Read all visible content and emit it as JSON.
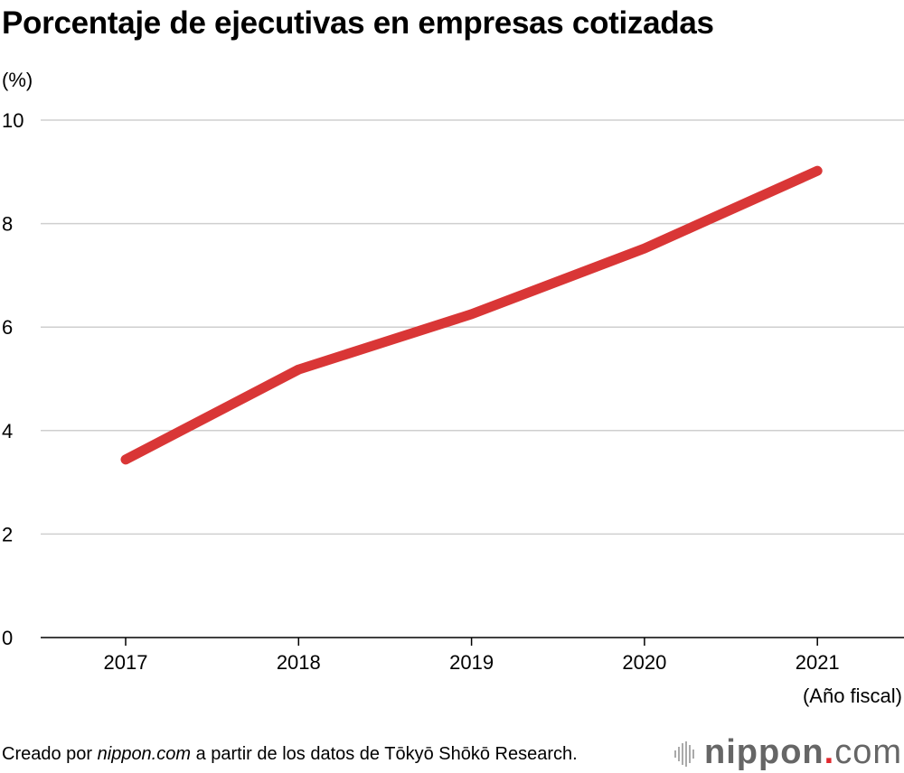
{
  "chart_data": {
    "type": "line",
    "title": "Porcentaje de ejecutivas en empresas cotizadas",
    "ylabel": "(%)",
    "xlabel": "(Año fiscal)",
    "categories": [
      "2017",
      "2018",
      "2019",
      "2020",
      "2021"
    ],
    "values": [
      3.44,
      5.18,
      6.25,
      7.52,
      9.02
    ],
    "ylim": [
      0,
      10
    ],
    "yticks": [
      0,
      2,
      4,
      6,
      8,
      10
    ],
    "grid": true,
    "line_color": "#d93636"
  },
  "footer": {
    "prefix": "Creado por ",
    "source_site": "nippon.com",
    "suffix": " a partir de los datos de Tōkyō Shōkō Research."
  },
  "logo": {
    "text": "nippon.com",
    "accent": "#e0282e"
  }
}
